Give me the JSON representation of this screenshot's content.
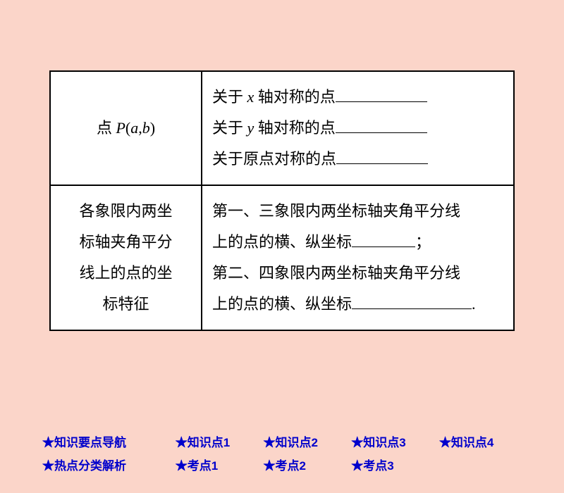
{
  "table": {
    "row1": {
      "left_prefix": "点 ",
      "left_P": "P",
      "left_paren_open": "(",
      "left_a": "a",
      "left_comma": ",",
      "left_b": "b",
      "left_paren_close": ")",
      "line1_prefix": "关于 ",
      "line1_x": "x",
      "line1_rest": " 轴对称的点",
      "line2_prefix": "关于 ",
      "line2_y": "y",
      "line2_rest": " 轴对称的点",
      "line3": "关于原点对称的点"
    },
    "row2": {
      "left_l1": "各象限内两坐",
      "left_l2": "标轴夹角平分",
      "left_l3": "线上的点的坐",
      "left_l4": "标特征",
      "right_l1": "第一、三象限内两坐标轴夹角平分线",
      "right_l2_a": "上的点的横、纵坐标",
      "right_l2_b": "；",
      "right_l3": "第二、四象限内两坐标轴夹角平分线",
      "right_l4_a": "上的点的横、纵坐标",
      "right_l4_b": "."
    }
  },
  "nav": {
    "row1": {
      "a": "★知识要点导航",
      "b": "★知识点1",
      "c": "★知识点2",
      "d": "★知识点3",
      "e": "★知识点4"
    },
    "row2": {
      "a": "★热点分类解析",
      "b": "★考点1",
      "c": "★考点2",
      "d": "★考点3"
    }
  },
  "colors": {
    "background": "#fbd5c9",
    "table_bg": "#ffffff",
    "border": "#000000",
    "nav_text": "#0000cc"
  }
}
